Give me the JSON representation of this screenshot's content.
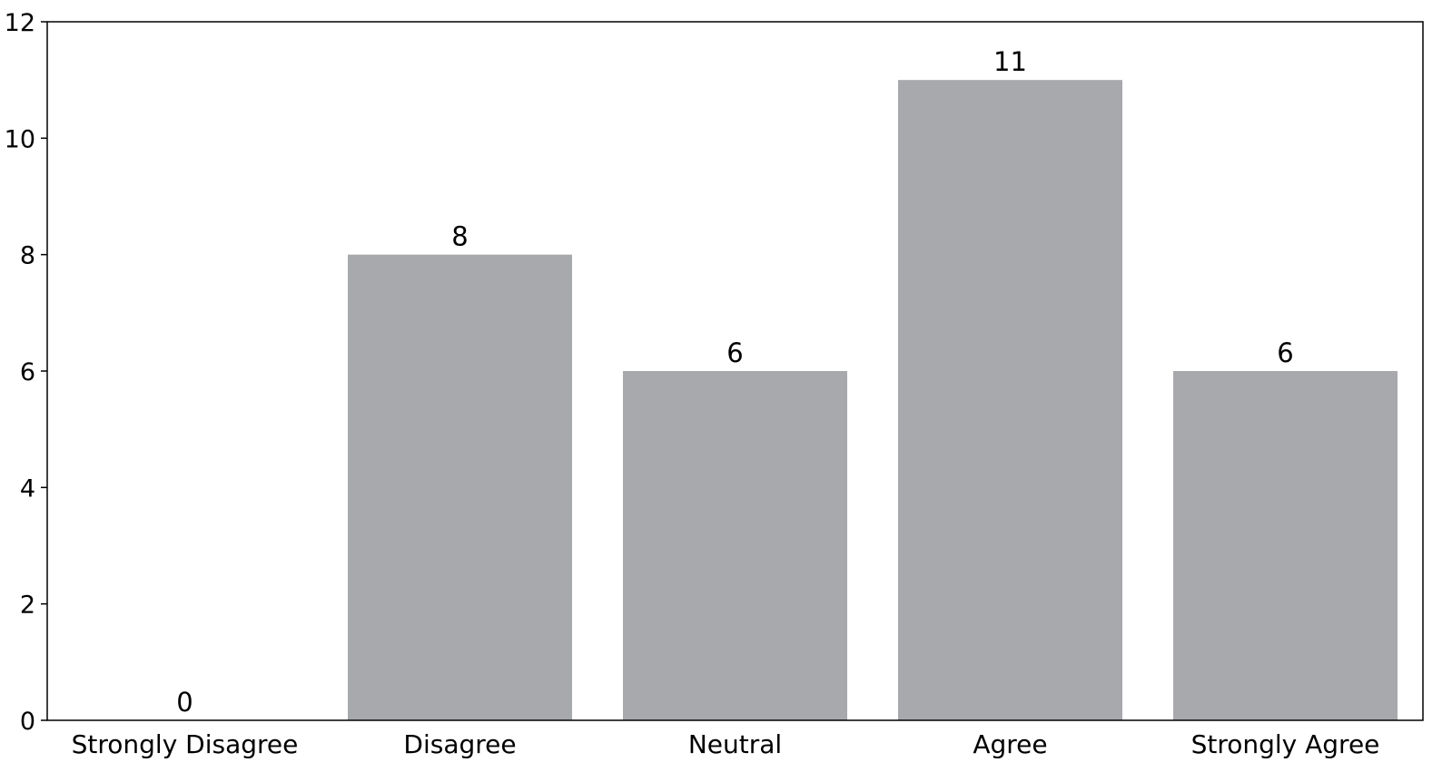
{
  "chart_data": {
    "type": "bar",
    "title": "",
    "xlabel": "",
    "ylabel": "",
    "categories": [
      "Strongly Disagree",
      "Disagree",
      "Neutral",
      "Agree",
      "Strongly Agree"
    ],
    "values": [
      0,
      8,
      6,
      11,
      6
    ],
    "data_labels": [
      "0",
      "8",
      "6",
      "11",
      "6"
    ],
    "ylim": [
      0,
      12
    ],
    "yticks": [
      "0",
      "2",
      "4",
      "6",
      "8",
      "10",
      "12"
    ],
    "bar_color": "#a8a9ac",
    "grid": false,
    "legend": "none"
  }
}
